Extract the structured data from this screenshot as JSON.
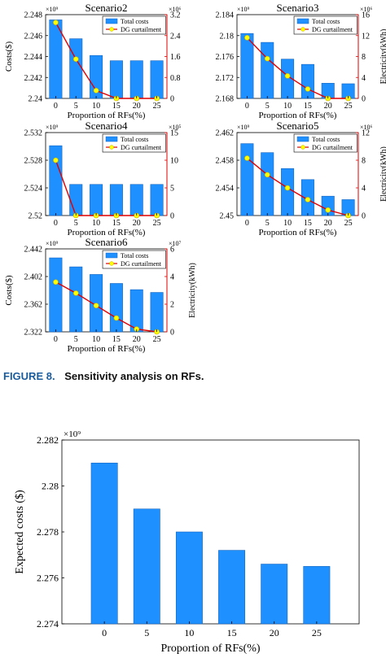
{
  "colors": {
    "bar": "#1e90ff",
    "bar_edge": "#1565c0",
    "line": "#e00000",
    "marker": "#ffff00",
    "caption_label": "#1a5c9e"
  },
  "figure_caption": {
    "label": "FIGURE 8.",
    "text": "Sensitivity analysis on RFs."
  },
  "chart_data": [
    {
      "type": "bar",
      "title": "Scenario2",
      "xlabel": "Proportion of RFs(%)",
      "ylabel": "Costs($)",
      "y2label": "",
      "categories": [
        "0",
        "5",
        "10",
        "15",
        "20",
        "25"
      ],
      "y_exponent": "×10⁹",
      "y2_exponent": "×10⁶",
      "ylim": [
        2.24,
        2.248
      ],
      "yticks": [
        "2.24",
        "2.242",
        "2.244",
        "2.246",
        "2.248"
      ],
      "y2lim": [
        0,
        3.2
      ],
      "y2ticks": [
        "0",
        "0.8",
        "1.6",
        "2.4",
        "3.2"
      ],
      "legend": [
        "Total costs",
        "DG curtailment"
      ],
      "series": [
        {
          "name": "Total costs",
          "kind": "bar",
          "values": [
            2.2475,
            2.2457,
            2.2441,
            2.2436,
            2.2436,
            2.2436
          ]
        },
        {
          "name": "DG curtailment",
          "kind": "line",
          "axis": "right",
          "values": [
            2.9,
            1.5,
            0.3,
            0,
            0,
            0
          ]
        }
      ]
    },
    {
      "type": "bar",
      "title": "Scenario3",
      "xlabel": "Proportion of RFs(%)",
      "ylabel": "",
      "y2label": "Electricity(kWh)",
      "categories": [
        "0",
        "5",
        "10",
        "15",
        "20",
        "25"
      ],
      "y_exponent": "×10⁹",
      "y2_exponent": "×10⁶",
      "ylim": [
        2.168,
        2.184
      ],
      "yticks": [
        "2.168",
        "2.172",
        "2.176",
        "2.18",
        "2.184"
      ],
      "y2lim": [
        0,
        16
      ],
      "y2ticks": [
        "0",
        "4",
        "8",
        "12",
        "16"
      ],
      "legend": [
        "Total costs",
        "DG curtailment"
      ],
      "series": [
        {
          "name": "Total costs",
          "kind": "bar",
          "values": [
            2.1804,
            2.1787,
            2.1755,
            2.1745,
            2.1709,
            2.1708
          ]
        },
        {
          "name": "DG curtailment",
          "kind": "line",
          "axis": "right",
          "values": [
            11.6,
            7.6,
            4.3,
            1.8,
            0,
            0
          ]
        }
      ]
    },
    {
      "type": "bar",
      "title": "Scenario4",
      "xlabel": "Proportion of RFs(%)",
      "ylabel": "",
      "y2label": "",
      "categories": [
        "0",
        "5",
        "10",
        "15",
        "20",
        "25"
      ],
      "y_exponent": "×10⁹",
      "y2_exponent": "×10⁵",
      "ylim": [
        2.52,
        2.532
      ],
      "yticks": [
        "2.52",
        "2.524",
        "2.528",
        "2.532"
      ],
      "y2lim": [
        0,
        15
      ],
      "y2ticks": [
        "0",
        "5",
        "10",
        "15"
      ],
      "legend": [
        "Total costs",
        "DG curtailment"
      ],
      "series": [
        {
          "name": "Total costs",
          "kind": "bar",
          "values": [
            2.5301,
            2.5245,
            2.5245,
            2.5245,
            2.5245,
            2.5245
          ]
        },
        {
          "name": "DG curtailment",
          "kind": "line",
          "axis": "right",
          "values": [
            10,
            0,
            0,
            0,
            0,
            0
          ]
        }
      ]
    },
    {
      "type": "bar",
      "title": "Scenario5",
      "xlabel": "Proportion of RFs(%)",
      "ylabel": "",
      "y2label": "Electricity(kWh)",
      "categories": [
        "0",
        "5",
        "10",
        "15",
        "20",
        "25"
      ],
      "y_exponent": "×10⁹",
      "y2_exponent": "×10⁶",
      "ylim": [
        2.45,
        2.462
      ],
      "yticks": [
        "2.45",
        "2.454",
        "2.458",
        "2.462"
      ],
      "y2lim": [
        0,
        12
      ],
      "y2ticks": [
        "0",
        "4",
        "8",
        "12"
      ],
      "legend": [
        "Total costs",
        "DG curtailment"
      ],
      "series": [
        {
          "name": "Total costs",
          "kind": "bar",
          "values": [
            2.4604,
            2.4591,
            2.4568,
            2.4552,
            2.4528,
            2.4523
          ]
        },
        {
          "name": "DG curtailment",
          "kind": "line",
          "axis": "right",
          "values": [
            8.3,
            5.9,
            4.0,
            2.3,
            0.8,
            0
          ]
        }
      ]
    },
    {
      "type": "bar",
      "title": "Scenario6",
      "xlabel": "Proportion of RFs(%)",
      "ylabel": "Costs($)",
      "y2label": "Electricity(kWh)",
      "categories": [
        "0",
        "5",
        "10",
        "15",
        "20",
        "25"
      ],
      "y_exponent": "×10⁹",
      "y2_exponent": "×10⁷",
      "ylim": [
        2.322,
        2.442
      ],
      "yticks": [
        "2.322",
        "2.362",
        "2.402",
        "2.442"
      ],
      "y2lim": [
        0,
        6
      ],
      "y2ticks": [
        "0",
        "2",
        "4",
        "6"
      ],
      "legend": [
        "Total costs",
        "DG curtailment"
      ],
      "series": [
        {
          "name": "Total costs",
          "kind": "bar",
          "values": [
            2.429,
            2.416,
            2.405,
            2.392,
            2.383,
            2.379
          ]
        },
        {
          "name": "DG curtailment",
          "kind": "line",
          "axis": "right",
          "values": [
            3.6,
            2.8,
            1.9,
            1.0,
            0.2,
            0
          ]
        }
      ]
    },
    {
      "type": "bar",
      "title": "",
      "xlabel": "Proportion of RFs(%)",
      "ylabel": "Expected costs ($)",
      "y2label": "",
      "categories": [
        "0",
        "5",
        "10",
        "15",
        "20",
        "25"
      ],
      "y_exponent": "×10⁹",
      "ylim": [
        2.274,
        2.282
      ],
      "yticks": [
        "2.274",
        "2.276",
        "2.278",
        "2.28",
        "2.282"
      ],
      "legend": [],
      "series": [
        {
          "name": "",
          "kind": "bar",
          "values": [
            2.281,
            2.279,
            2.278,
            2.2772,
            2.2766,
            2.2765
          ]
        }
      ]
    }
  ]
}
